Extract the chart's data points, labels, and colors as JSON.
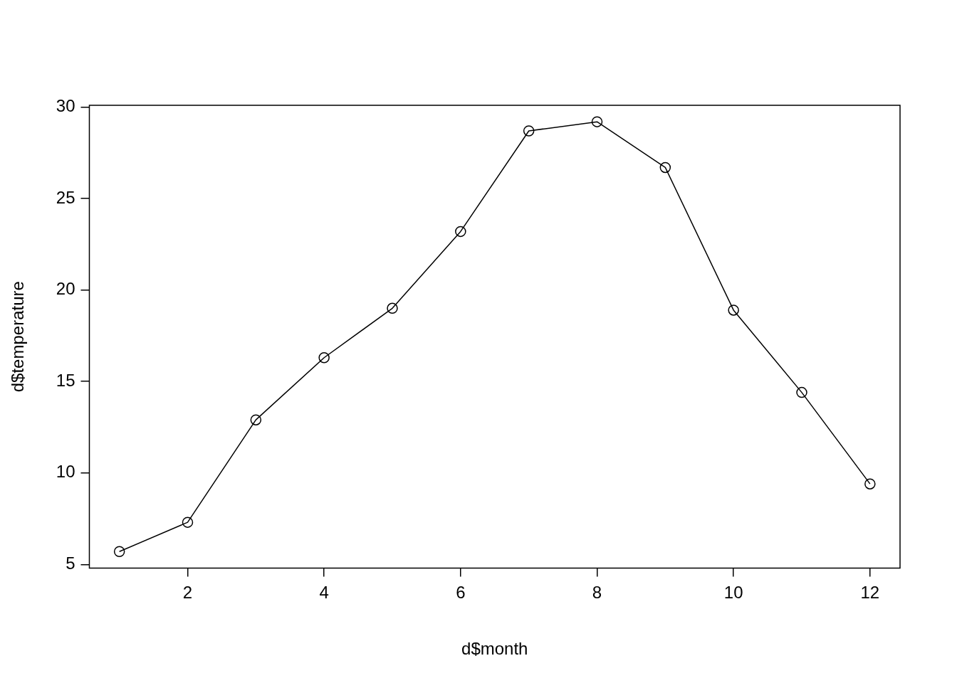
{
  "chart_data": {
    "type": "line",
    "xlabel": "d$month",
    "ylabel": "d$temperature",
    "x": [
      1,
      2,
      3,
      4,
      5,
      6,
      7,
      8,
      9,
      10,
      11,
      12
    ],
    "series": [
      {
        "color": "#000000",
        "values": [
          5.7,
          7.3,
          12.9,
          16.3,
          19.0,
          23.2,
          28.7,
          29.2,
          26.7,
          18.9,
          14.4,
          9.4
        ]
      }
    ],
    "xlim": [
      0.56,
      12.44
    ],
    "xticks": [
      2,
      4,
      6,
      8,
      10,
      12
    ],
    "ylim": [
      4.8,
      30.1
    ],
    "yticks": [
      5,
      10,
      15,
      20,
      25,
      30
    ],
    "grid": false,
    "legend": false,
    "marker": "circle",
    "line_style": "solid"
  }
}
